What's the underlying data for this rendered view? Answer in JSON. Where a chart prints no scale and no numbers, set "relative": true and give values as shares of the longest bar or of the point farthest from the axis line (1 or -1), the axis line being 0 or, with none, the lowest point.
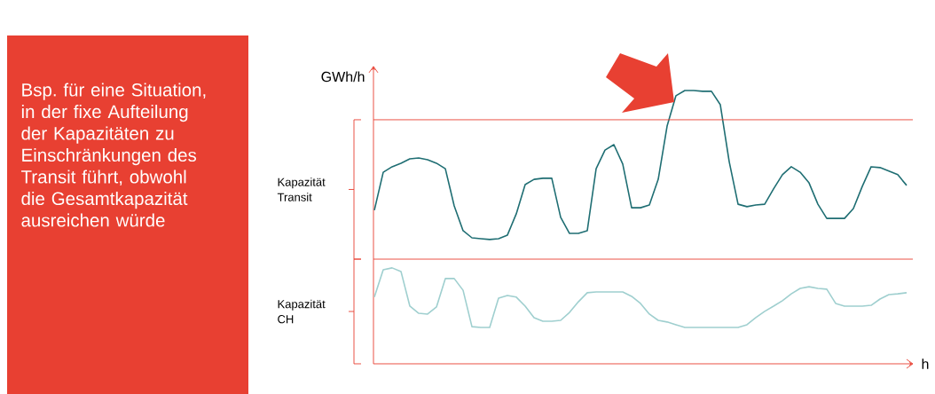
{
  "chart_data": {
    "type": "line",
    "relative": true,
    "ylabel": "GWh/h",
    "xlabel": "h",
    "categories": [
      null,
      null,
      null,
      null,
      null,
      null,
      null,
      null,
      null,
      null,
      null,
      null,
      null,
      null,
      null,
      null,
      null,
      null,
      null,
      null,
      null,
      null,
      null,
      null,
      null,
      null,
      null,
      null,
      null,
      null,
      null,
      null,
      null,
      null,
      null,
      null,
      null,
      null,
      null,
      null,
      null,
      null,
      null,
      null,
      null,
      null,
      null,
      null,
      null,
      null,
      null,
      null,
      null,
      null,
      null,
      null,
      null,
      null,
      null,
      null,
      null
    ],
    "series": [
      {
        "color": "#1f6e73",
        "values": [
          0.562,
          0.701,
          0.721,
          0.734,
          0.75,
          0.753,
          0.747,
          0.734,
          0.714,
          0.578,
          0.487,
          0.461,
          0.458,
          0.455,
          0.458,
          0.471,
          0.549,
          0.656,
          0.675,
          0.679,
          0.679,
          0.536,
          0.477,
          0.477,
          0.487,
          0.714,
          0.782,
          0.802,
          0.731,
          0.571,
          0.571,
          0.581,
          0.675,
          0.87,
          0.981,
          1.0,
          1.0,
          0.997,
          0.997,
          0.948,
          0.74,
          0.584,
          0.575,
          0.581,
          0.584,
          0.64,
          0.692,
          0.721,
          0.701,
          0.662,
          0.584,
          0.532,
          0.532,
          0.532,
          0.568,
          0.649,
          0.721,
          0.718,
          0.705,
          0.692,
          0.653
        ]
      },
      {
        "color": "#9fcfcf",
        "values": [
          0.244,
          0.344,
          0.351,
          0.338,
          0.211,
          0.185,
          0.182,
          0.208,
          0.312,
          0.312,
          0.269,
          0.136,
          0.133,
          0.133,
          0.24,
          0.25,
          0.244,
          0.211,
          0.169,
          0.156,
          0.156,
          0.159,
          0.188,
          0.227,
          0.26,
          0.263,
          0.263,
          0.263,
          0.263,
          0.247,
          0.221,
          0.182,
          0.159,
          0.153,
          0.143,
          0.133,
          0.133,
          0.133,
          0.133,
          0.133,
          0.133,
          0.133,
          0.143,
          0.169,
          0.192,
          0.211,
          0.231,
          0.256,
          0.276,
          0.282,
          0.276,
          0.273,
          0.221,
          0.211,
          0.211,
          0.211,
          0.214,
          0.237,
          0.253,
          0.256,
          0.26
        ]
      }
    ],
    "ref_lines": [
      {
        "axis": "y",
        "value": 0.893,
        "color": "#e84032"
      },
      {
        "axis": "y",
        "value": 0.383,
        "color": "#e84032"
      }
    ],
    "annotations": [
      "Bsp. für eine Situation, in der fixe Aufteilung der Kapazitäten zu Einschränkungen des Transit führt, obwohl die Gesamtkapazität ausreichen würde",
      "Kapazität Transit",
      "Kapazität CH"
    ]
  }
}
